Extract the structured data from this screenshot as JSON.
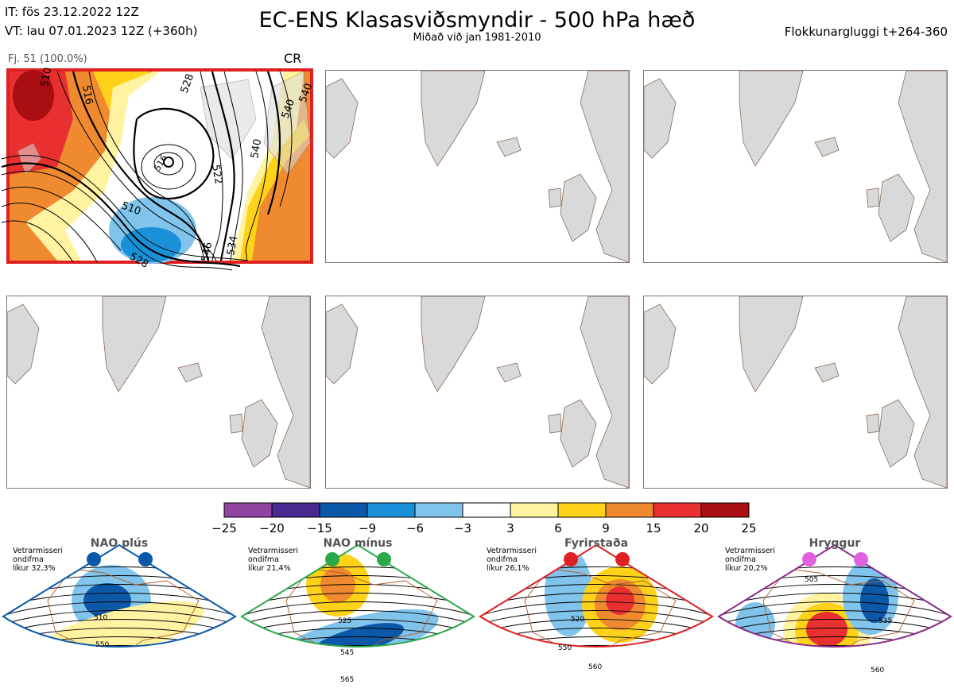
{
  "header": {
    "it": "IT: fös 23.12.2022 12Z",
    "vt": "VT: lau 07.01.2023 12Z  (+360h)",
    "title": "EC-ENS Klasasviðsmyndir - 500 hPa hæð",
    "subtitle": "Miðað við jan 1981-2010",
    "window": "Flokkunargluggi t+264-360"
  },
  "cluster": {
    "info": "Fj. 51 (100.0%)",
    "code": "CR",
    "contour_labels": [
      "510",
      "516",
      "522",
      "528",
      "534",
      "540",
      "546",
      "528",
      "510",
      "516",
      "540",
      "540"
    ]
  },
  "colors": {
    "cluster_frame": "#e02020",
    "land": "#d9d9d9",
    "coast": "#8b6a55"
  },
  "chart_data": {
    "type": "heatmap",
    "colorbar": {
      "ticks": [
        "−25",
        "−20",
        "−15",
        "−9",
        "−6",
        "−3",
        "3",
        "6",
        "9",
        "15",
        "20",
        "25"
      ],
      "colors": [
        "#8e44a0",
        "#4a2a90",
        "#0b58a8",
        "#1a90d8",
        "#80c4ec",
        "#ffffff",
        "#fff2a0",
        "#ffd21a",
        "#f08a30",
        "#e83030",
        "#a80e12"
      ]
    },
    "regimes": [
      {
        "name": "NAO plús",
        "info": [
          "Vetrarmisseri",
          "ondifma",
          "líkur 32,3%"
        ],
        "labels": [
          "510",
          "550"
        ],
        "frame": "#0b58a8",
        "marker": "#0b58a8"
      },
      {
        "name": "NAO mínus",
        "info": [
          "Vetrarmisseri",
          "ondifma",
          "líkur 21,4%"
        ],
        "labels": [
          "525",
          "545",
          "565"
        ],
        "frame": "#2aa84a",
        "marker": "#2aa84a"
      },
      {
        "name": "Fyrirstaða",
        "info": [
          "Vetrarmisseri",
          "ondifma",
          "líkur 26,1%"
        ],
        "labels": [
          "520",
          "550",
          "560"
        ],
        "frame": "#e02020",
        "marker": "#e02020"
      },
      {
        "name": "Hryggur",
        "info": [
          "Vetrarmisseri",
          "ondifma",
          "líkur 20,2%"
        ],
        "labels": [
          "505",
          "535",
          "560"
        ],
        "frame": "#8a2a8a",
        "marker": "#e060e0"
      }
    ]
  }
}
